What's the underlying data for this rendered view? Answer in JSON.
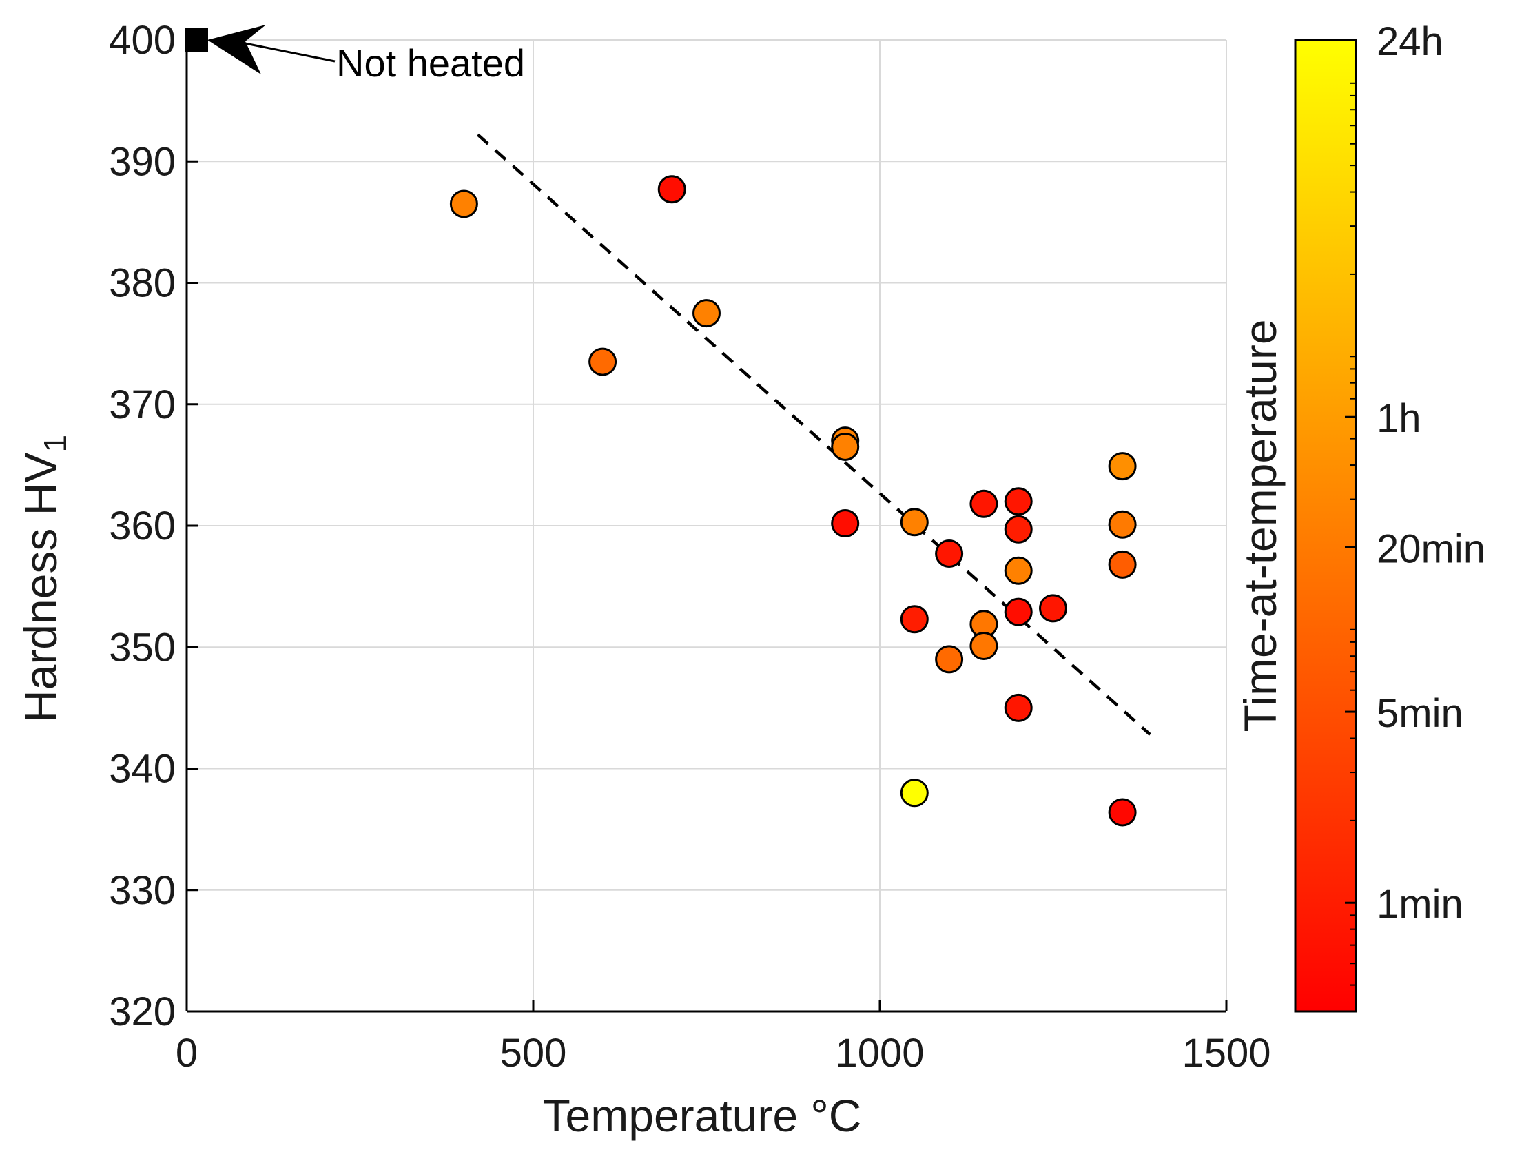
{
  "chart_data": {
    "type": "scatter",
    "title": "",
    "xlabel": "Temperature °C",
    "ylabel_main": "Hardness HV",
    "ylabel_sub": "1",
    "xlim": [
      0,
      1500
    ],
    "ylim": [
      320,
      400
    ],
    "xticks": [
      0,
      500,
      1000,
      1500
    ],
    "xtick_labels": [
      "0",
      "500",
      "1000",
      "1500"
    ],
    "yticks": [
      320,
      330,
      340,
      350,
      360,
      370,
      380,
      390,
      400
    ],
    "ytick_labels": [
      "320",
      "330",
      "340",
      "350",
      "360",
      "370",
      "380",
      "390",
      "400"
    ],
    "grid": true,
    "points": [
      {
        "x": 400,
        "y": 386.5,
        "time_min": 25
      },
      {
        "x": 600,
        "y": 373.5,
        "time_min": 12
      },
      {
        "x": 700,
        "y": 387.7,
        "time_min": 0.6
      },
      {
        "x": 750,
        "y": 377.5,
        "time_min": 25
      },
      {
        "x": 950,
        "y": 367.0,
        "time_min": 25
      },
      {
        "x": 950,
        "y": 366.5,
        "time_min": 25
      },
      {
        "x": 950,
        "y": 360.2,
        "time_min": 0.6
      },
      {
        "x": 1050,
        "y": 360.3,
        "time_min": 25
      },
      {
        "x": 1050,
        "y": 352.3,
        "time_min": 1
      },
      {
        "x": 1050,
        "y": 338.0,
        "time_min": 1440
      },
      {
        "x": 1100,
        "y": 357.7,
        "time_min": 0.8
      },
      {
        "x": 1100,
        "y": 349.0,
        "time_min": 12
      },
      {
        "x": 1150,
        "y": 361.8,
        "time_min": 0.8
      },
      {
        "x": 1150,
        "y": 351.9,
        "time_min": 18
      },
      {
        "x": 1150,
        "y": 350.1,
        "time_min": 18
      },
      {
        "x": 1200,
        "y": 362.0,
        "time_min": 0.8
      },
      {
        "x": 1200,
        "y": 359.7,
        "time_min": 1
      },
      {
        "x": 1200,
        "y": 356.3,
        "time_min": 25
      },
      {
        "x": 1200,
        "y": 352.9,
        "time_min": 0.6
      },
      {
        "x": 1200,
        "y": 345.0,
        "time_min": 0.8
      },
      {
        "x": 1250,
        "y": 353.2,
        "time_min": 0.8
      },
      {
        "x": 1350,
        "y": 364.9,
        "time_min": 40
      },
      {
        "x": 1350,
        "y": 360.1,
        "time_min": 20
      },
      {
        "x": 1350,
        "y": 356.8,
        "time_min": 8
      },
      {
        "x": 1350,
        "y": 336.4,
        "time_min": 0.5
      }
    ],
    "not_heated_point": {
      "x": 0,
      "y": 400,
      "label": "Not heated"
    },
    "trend_line": {
      "x": [
        420,
        1390
      ],
      "y": [
        392.2,
        342.8
      ],
      "style": "dashed"
    },
    "colorbar": {
      "title": "Time-at-temperature",
      "scale": "log",
      "range_min": [
        0.4,
        1440
      ],
      "ticks": [
        {
          "value_min": 1,
          "label": "1min"
        },
        {
          "value_min": 5,
          "label": "5min"
        },
        {
          "value_min": 20,
          "label": "20min"
        },
        {
          "value_min": 60,
          "label": "1h"
        },
        {
          "value_min": 1440,
          "label": "24h"
        }
      ],
      "colors": {
        "low": "#ff0000",
        "high": "#ffff00"
      }
    }
  },
  "colors": {
    "grid": "#d9d9d9",
    "axis": "#000000",
    "marker_edge": "#000000",
    "trend": "#000000"
  }
}
